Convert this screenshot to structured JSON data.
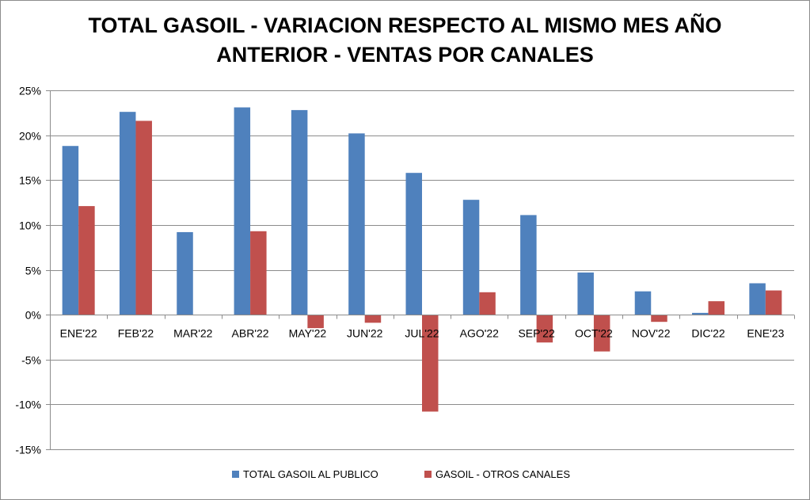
{
  "chart_data": {
    "type": "bar",
    "title_lines": [
      "TOTAL GASOIL - VARIACION RESPECTO AL MISMO MES AÑO",
      "ANTERIOR - VENTAS POR CANALES"
    ],
    "categories": [
      "ENE'22",
      "FEB'22",
      "MAR'22",
      "ABR'22",
      "MAY'22",
      "JUN'22",
      "JUL'22",
      "AGO'22",
      "SEP'22",
      "OCT'22",
      "NOV'22",
      "DIC'22",
      "ENE'23"
    ],
    "series": [
      {
        "name": "TOTAL GASOIL AL PUBLICO",
        "color": "#4f81bd",
        "values": [
          18.8,
          22.6,
          9.2,
          23.1,
          22.8,
          20.2,
          15.8,
          12.8,
          11.1,
          4.7,
          2.6,
          0.2,
          3.5
        ]
      },
      {
        "name": "GASOIL - OTROS CANALES",
        "color": "#c0504d",
        "values": [
          12.1,
          21.6,
          0.0,
          9.3,
          -1.5,
          -0.9,
          -10.8,
          2.5,
          -3.1,
          -4.1,
          -0.8,
          1.5,
          2.7
        ]
      }
    ],
    "ylim": [
      -15,
      25
    ],
    "yticks": [
      25,
      20,
      15,
      10,
      5,
      0,
      -5,
      -10,
      -15
    ],
    "ytick_labels": [
      "25%",
      "20%",
      "15%",
      "10%",
      "5%",
      "0%",
      "-5%",
      "-10%",
      "-15%"
    ],
    "grid": true,
    "legend_position": "bottom",
    "xlabel": "",
    "ylabel": ""
  }
}
